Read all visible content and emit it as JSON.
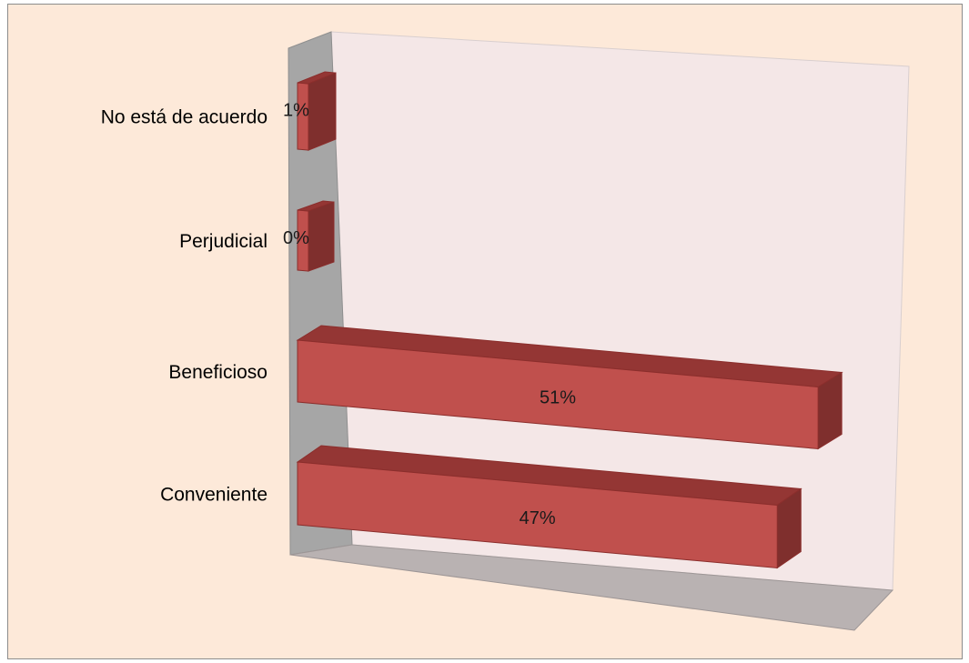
{
  "chart_data": {
    "type": "bar",
    "orientation": "horizontal",
    "style": "3d",
    "categories": [
      "No está de acuerdo",
      "Perjudicial",
      "Beneficioso",
      "Conveniente"
    ],
    "values": [
      1,
      0,
      51,
      47
    ],
    "value_labels": [
      "1%",
      "0%",
      "51%",
      "47%"
    ],
    "unit": "%",
    "xlim": [
      0,
      55
    ],
    "grid": false,
    "legend": "none",
    "colors": {
      "chart_background": "#fde9d9",
      "chart_border": "#8c8c8c",
      "back_wall": "#f4e7e7",
      "side_wall": "#a6a6a6",
      "floor": "#b9b2b2",
      "bar_front": "#c0504d",
      "bar_top": "#943634",
      "bar_side": "#7f2f2d",
      "bar_edge": "#8b2e2c"
    }
  }
}
